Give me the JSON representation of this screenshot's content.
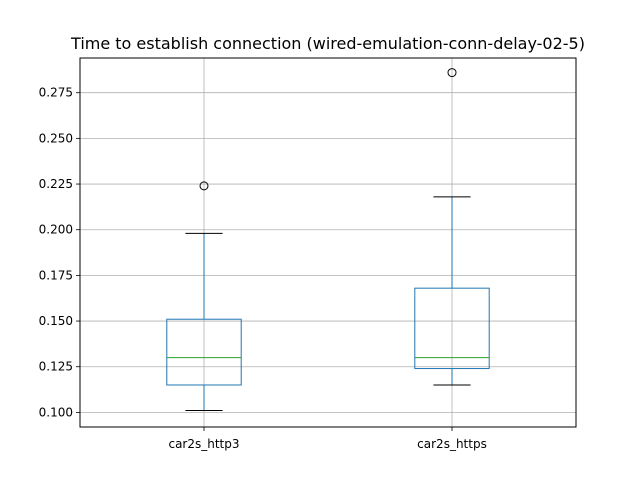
{
  "chart_data": {
    "type": "boxplot",
    "title": "Time to establish connection (wired-emulation-conn-delay-02-5)",
    "xlabel": "",
    "ylabel": "",
    "ylim": [
      0.092,
      0.294
    ],
    "yticks": [
      0.1,
      0.125,
      0.15,
      0.175,
      0.2,
      0.225,
      0.25,
      0.275
    ],
    "ytick_labels": [
      "0.100",
      "0.125",
      "0.150",
      "0.175",
      "0.200",
      "0.225",
      "0.250",
      "0.275"
    ],
    "grid": true,
    "categories": [
      "car2s_http3",
      "car2s_https"
    ],
    "boxes": [
      {
        "label": "car2s_http3",
        "whisker_low": 0.101,
        "q1": 0.115,
        "median": 0.13,
        "q3": 0.151,
        "whisker_high": 0.198,
        "outliers": [
          0.224
        ]
      },
      {
        "label": "car2s_https",
        "whisker_low": 0.115,
        "q1": 0.124,
        "median": 0.13,
        "q3": 0.168,
        "whisker_high": 0.218,
        "outliers": [
          0.286
        ]
      }
    ],
    "colors": {
      "box": "#1f77b4",
      "median": "#2ca02c",
      "whisker_cap": "#000000",
      "outlier": "#000000",
      "grid": "#b0b0b0"
    }
  }
}
